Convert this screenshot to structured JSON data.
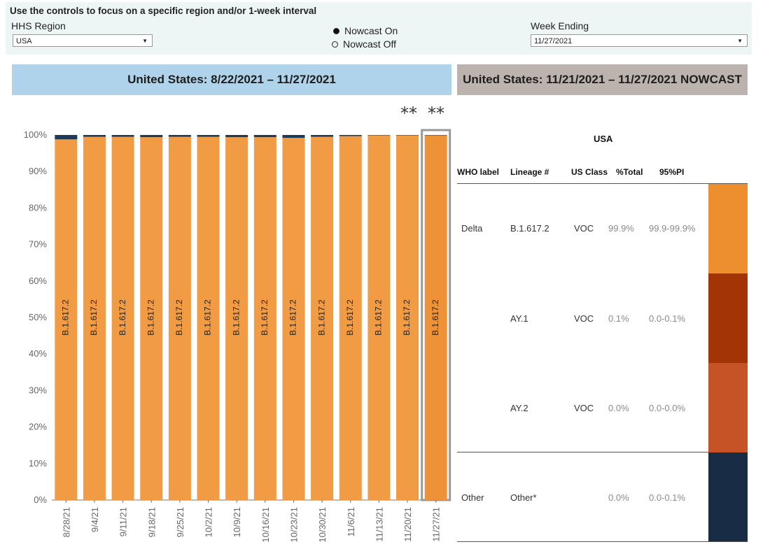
{
  "controls": {
    "title": "Use the controls to focus on a specific region and/or 1-week interval",
    "region_label": "HHS Region",
    "region_value": "USA",
    "nowcast_on": "Nowcast On",
    "nowcast_off": "Nowcast Off",
    "nowcast_selected": "on",
    "week_label": "Week Ending",
    "week_value": "11/27/2021"
  },
  "banners": {
    "left": "United States: 8/22/2021 – 11/27/2021",
    "right": "United States: 11/21/2021 – 11/27/2021 NOWCAST"
  },
  "chart_data": {
    "type": "bar",
    "stacked": true,
    "categories": [
      "8/28/21",
      "9/4/21",
      "9/11/21",
      "9/18/21",
      "9/25/21",
      "10/2/21",
      "10/9/21",
      "10/16/21",
      "10/23/21",
      "10/30/21",
      "11/6/21",
      "11/13/21",
      "11/20/21",
      "11/27/21"
    ],
    "yticks": [
      "0%",
      "10%",
      "20%",
      "30%",
      "40%",
      "50%",
      "60%",
      "70%",
      "80%",
      "90%",
      "100%"
    ],
    "ylim": [
      0,
      100
    ],
    "bar_label": "B.1.617.2",
    "nowcast_marker": "**",
    "nowcast_categories": [
      "11/20/21",
      "11/27/21"
    ],
    "highlight_category": "11/27/21",
    "series": [
      {
        "name": "B.1.617.2",
        "color": "#f19b44",
        "highlight_color": "#ee9238",
        "values": [
          98.8,
          99.5,
          99.5,
          99.4,
          99.5,
          99.5,
          99.4,
          99.4,
          99.2,
          99.5,
          99.7,
          99.9,
          99.9,
          99.9
        ]
      },
      {
        "name": "Other",
        "color": "#1f3a56",
        "values": [
          1.2,
          0.5,
          0.5,
          0.6,
          0.5,
          0.5,
          0.6,
          0.6,
          0.8,
          0.5,
          0.3,
          0.1,
          0.1,
          0.1
        ]
      }
    ]
  },
  "table": {
    "title": "USA",
    "headers": [
      "WHO label",
      "Lineage #",
      "US Class",
      "%Total",
      "95%PI"
    ],
    "rows": [
      {
        "who": "Delta",
        "lineage": "B.1.617.2",
        "us_class": "VOC",
        "pct": "99.9%",
        "pi": "99.9-99.9%",
        "color": "#ee8f2f"
      },
      {
        "who": "",
        "lineage": "AY.1",
        "us_class": "VOC",
        "pct": "0.1%",
        "pi": "0.0-0.1%",
        "color": "#a33405"
      },
      {
        "who": "",
        "lineage": "AY.2",
        "us_class": "VOC",
        "pct": "0.0%",
        "pi": "0.0-0.0%",
        "color": "#c55326"
      },
      {
        "who": "Other",
        "lineage": "Other*",
        "us_class": "",
        "pct": "0.0%",
        "pi": "0.0-0.1%",
        "color": "#182c45"
      }
    ]
  }
}
